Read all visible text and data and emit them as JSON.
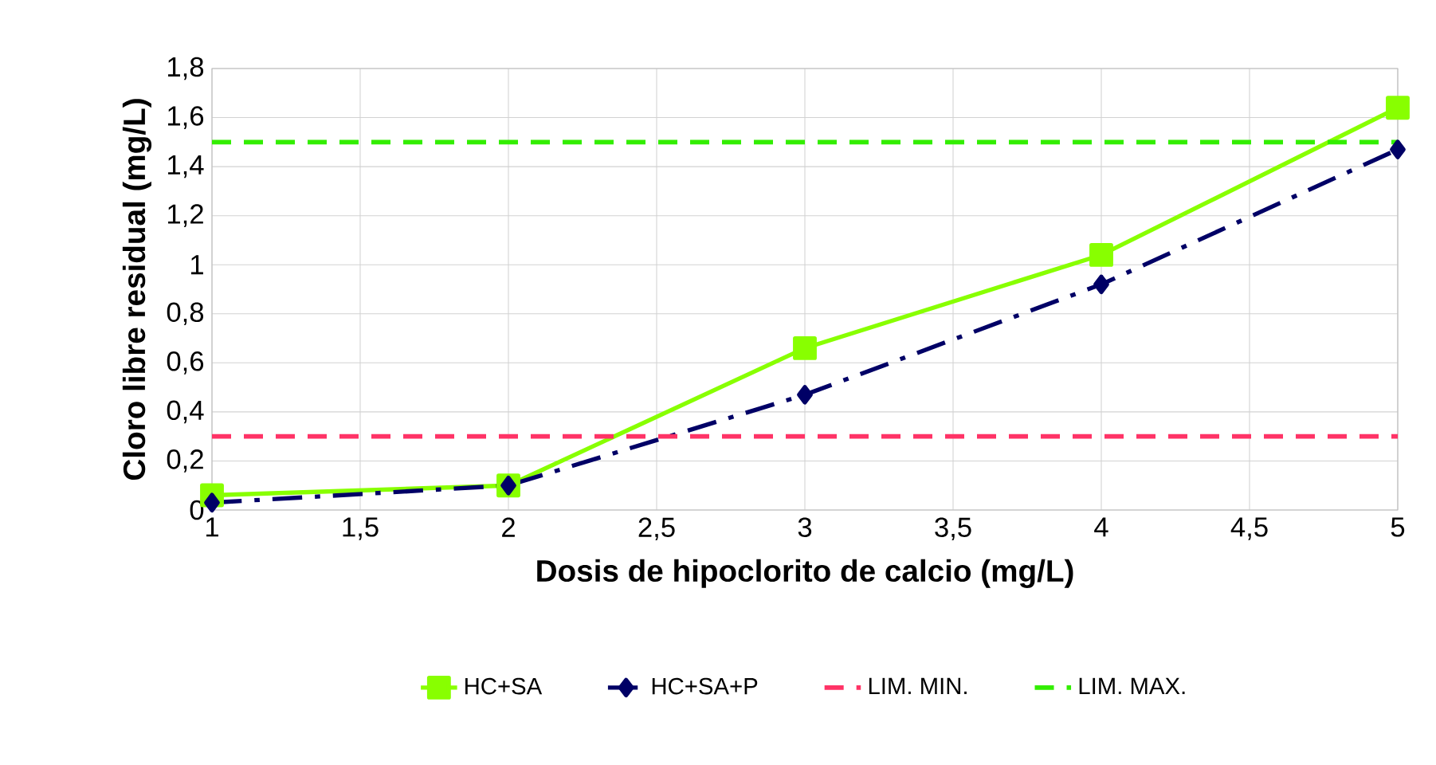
{
  "chart_data": {
    "type": "line",
    "xlabel": "Dosis de hipoclorito de calcio (mg/L)",
    "ylabel": "Cloro libre residual (mg/L)",
    "x": [
      1,
      2,
      3,
      4,
      5
    ],
    "series": [
      {
        "name": "HC+SA",
        "color": "#88ff00",
        "values": [
          0.06,
          0.1,
          0.66,
          1.04,
          1.64
        ],
        "marker": "square",
        "line_style": "solid"
      },
      {
        "name": "HC+SA+P",
        "color": "#000066",
        "values": [
          0.03,
          0.1,
          0.47,
          0.92,
          1.47
        ],
        "marker": "diamond",
        "line_style": "dashdot"
      }
    ],
    "ref_lines": [
      {
        "axis": "y",
        "value": 0.3,
        "label": "LIM. MIN.",
        "color": "#ff3366",
        "line_style": "dashed"
      },
      {
        "axis": "y",
        "value": 1.5,
        "label": "LIM. MAX.",
        "color": "#33ee00",
        "line_style": "dashed"
      }
    ],
    "xlim": [
      1,
      5
    ],
    "ylim": [
      0,
      1.8
    ],
    "xticks": [
      1,
      {
        "value": 1.5,
        "label": "1,5"
      },
      2,
      {
        "value": 2.5,
        "label": "2,5"
      },
      3,
      {
        "value": 3.5,
        "label": "3,5"
      },
      4,
      {
        "value": 4.5,
        "label": "4,5"
      },
      5
    ],
    "yticks": [
      0,
      {
        "value": 0.2,
        "label": "0,2"
      },
      {
        "value": 0.4,
        "label": "0,4"
      },
      {
        "value": 0.6,
        "label": "0,6"
      },
      {
        "value": 0.8,
        "label": "0,8"
      },
      1,
      {
        "value": 1.2,
        "label": "1,2"
      },
      {
        "value": 1.4,
        "label": "1,4"
      },
      {
        "value": 1.6,
        "label": "1,6"
      },
      {
        "value": 1.8,
        "label": "1,8"
      }
    ],
    "grid": true,
    "legend": "bottom"
  }
}
